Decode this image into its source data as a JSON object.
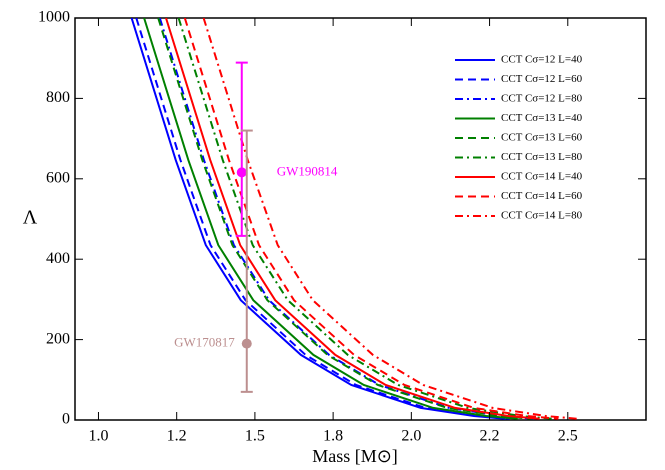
{
  "chart_data": {
    "type": "line",
    "xlabel": "Mass [M⊙]",
    "ylabel": "Λ",
    "xlim": [
      0.925,
      2.75
    ],
    "ylim": [
      0,
      1000
    ],
    "xticks": [
      {
        "value": 1.0,
        "label": "1.0"
      },
      {
        "value": 1.25,
        "label": "1.2"
      },
      {
        "value": 1.5,
        "label": "1.5"
      },
      {
        "value": 1.75,
        "label": "1.8"
      },
      {
        "value": 2.0,
        "label": "2.0"
      },
      {
        "value": 2.25,
        "label": "2.2"
      },
      {
        "value": 2.5,
        "label": "2.5"
      }
    ],
    "yticks": [
      0,
      200,
      400,
      600,
      800,
      1000
    ],
    "legend": "top-right",
    "series": [
      {
        "name": "CCT Cσ=12 L=40",
        "color": "#0000ff",
        "dash": "solid",
        "x": [
          1.106,
          1.247,
          1.343,
          1.455,
          1.647,
          1.808,
          2.03,
          2.2,
          2.3
        ],
        "values": [
          1000,
          647,
          435,
          298,
          162,
          87,
          30,
          10,
          3
        ]
      },
      {
        "name": "CCT Cσ=12 L=60",
        "color": "#0000ff",
        "dash": "dashed",
        "x": [
          1.121,
          1.262,
          1.358,
          1.47,
          1.662,
          1.823,
          2.045,
          2.215,
          2.315
        ],
        "values": [
          1000,
          647,
          435,
          298,
          162,
          87,
          30,
          10,
          3
        ]
      },
      {
        "name": "CCT Cσ=12 L=80",
        "color": "#0000ff",
        "dash": "dashdot",
        "x": [
          1.196,
          1.337,
          1.433,
          1.545,
          1.737,
          1.898,
          2.12,
          2.29,
          2.39
        ],
        "values": [
          1000,
          647,
          435,
          298,
          162,
          87,
          30,
          10,
          3
        ]
      },
      {
        "name": "CCT Cσ=13 L=40",
        "color": "#008000",
        "dash": "solid",
        "x": [
          1.146,
          1.287,
          1.383,
          1.495,
          1.687,
          1.848,
          2.07,
          2.24,
          2.34
        ],
        "values": [
          1000,
          647,
          435,
          298,
          162,
          87,
          30,
          10,
          3
        ]
      },
      {
        "name": "CCT Cσ=13 L=60",
        "color": "#008000",
        "dash": "dashed",
        "x": [
          1.191,
          1.332,
          1.428,
          1.54,
          1.732,
          1.893,
          2.115,
          2.285,
          2.385
        ],
        "values": [
          1000,
          647,
          435,
          298,
          162,
          87,
          30,
          10,
          3
        ]
      },
      {
        "name": "CCT Cσ=13 L=80",
        "color": "#008000",
        "dash": "dashdot",
        "x": [
          1.256,
          1.397,
          1.493,
          1.605,
          1.797,
          1.958,
          2.18,
          2.35,
          2.45
        ],
        "values": [
          1000,
          647,
          435,
          298,
          162,
          87,
          30,
          10,
          3
        ]
      },
      {
        "name": "CCT Cσ=14 L=40",
        "color": "#ff0000",
        "dash": "solid",
        "x": [
          1.216,
          1.357,
          1.453,
          1.565,
          1.757,
          1.918,
          2.14,
          2.31,
          2.41
        ],
        "values": [
          1000,
          647,
          435,
          298,
          162,
          87,
          30,
          10,
          3
        ]
      },
      {
        "name": "CCT Cσ=14 L=60",
        "color": "#ff0000",
        "dash": "dashed",
        "x": [
          1.276,
          1.417,
          1.513,
          1.625,
          1.817,
          1.978,
          2.2,
          2.37,
          2.47
        ],
        "values": [
          1000,
          647,
          435,
          298,
          162,
          87,
          30,
          10,
          3
        ]
      },
      {
        "name": "CCT Cσ=14 L=80",
        "color": "#ff0000",
        "dash": "dashdot",
        "x": [
          1.336,
          1.477,
          1.573,
          1.685,
          1.877,
          2.038,
          2.26,
          2.43,
          2.53
        ],
        "values": [
          1000,
          647,
          435,
          298,
          162,
          87,
          30,
          10,
          3
        ]
      }
    ],
    "points": [
      {
        "name": "GW190814",
        "color": "#ff00ff",
        "x": 1.458,
        "y": 616,
        "ylow": 458,
        "yhigh": 889
      },
      {
        "name": "GW170817",
        "color": "#bc8f8f",
        "x": 1.474,
        "y": 190,
        "ylow": 70,
        "yhigh": 720
      }
    ]
  }
}
